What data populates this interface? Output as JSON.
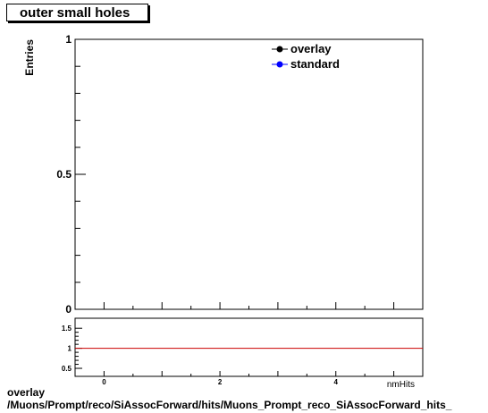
{
  "title": "outer small holes",
  "footer": {
    "line1": "overlay",
    "line2": "/Muons/Prompt/reco/SiAssocForward/hits/Muons_Prompt_reco_SiAssocForward_hits_"
  },
  "chart_data": [
    {
      "type": "line",
      "ylabel": "Entries",
      "xlabel": "nmHits",
      "xlim": [
        -0.5,
        5.5
      ],
      "ylim": [
        0,
        1
      ],
      "y_ticks": [
        "0",
        "0.5",
        "1"
      ],
      "legend": {
        "placement": "top-right",
        "entries": [
          {
            "name": "overlay",
            "color": "#000000"
          },
          {
            "name": "standard",
            "color": "#0000ff"
          }
        ]
      },
      "series": [
        {
          "name": "overlay",
          "x": [],
          "y": []
        },
        {
          "name": "standard",
          "x": [],
          "y": []
        }
      ],
      "grid": false
    },
    {
      "type": "line",
      "xlim": [
        -0.5,
        5.5
      ],
      "ylim": [
        0.3,
        1.75
      ],
      "x_ticks": [
        "0",
        "2",
        "4"
      ],
      "y_ticks": [
        "0.5",
        "1",
        "1.5"
      ],
      "reference_line": {
        "y": 1,
        "color": "#cc0000"
      },
      "grid": false
    }
  ]
}
